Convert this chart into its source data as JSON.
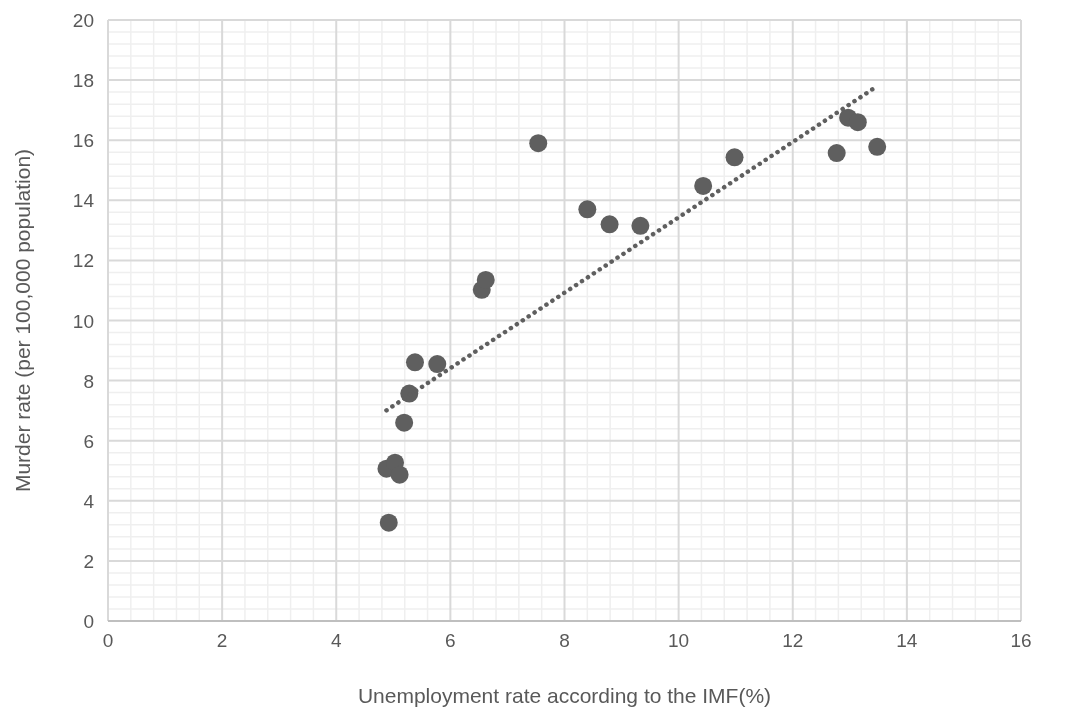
{
  "chart_data": {
    "type": "scatter",
    "xlabel": "Unemployment rate according to the IMF(%)",
    "ylabel": "Murder rate (per 100,000 population)",
    "xlim": [
      0,
      16
    ],
    "xticks": [
      0,
      2,
      4,
      6,
      8,
      10,
      12,
      14,
      16
    ],
    "ylim": [
      0,
      20
    ],
    "yticks": [
      0,
      2,
      4,
      6,
      8,
      10,
      12,
      14,
      16,
      18,
      20
    ],
    "grid": true,
    "series": [
      {
        "color": "#5f5f5f",
        "marker": "circle",
        "x": [
          7.54,
          8.4,
          8.79,
          9.33,
          10.43,
          10.98,
          12.77,
          13.48,
          12.97,
          13.14,
          5.38,
          5.77,
          5.28,
          5.19,
          4.88,
          5.03,
          5.11,
          4.92,
          6.55,
          6.62
        ],
        "values": [
          15.9,
          13.7,
          13.2,
          13.15,
          14.48,
          15.43,
          15.57,
          15.78,
          16.75,
          16.6,
          8.61,
          8.55,
          7.57,
          6.6,
          5.07,
          5.27,
          4.87,
          3.27,
          11.02,
          11.35
        ]
      },
      {
        "type": "line",
        "color": "#5f5f5f",
        "line_style": "dotted",
        "marker": "none",
        "x": [
          4.88,
          13.45
        ],
        "values": [
          7.01,
          17.76
        ]
      }
    ]
  }
}
